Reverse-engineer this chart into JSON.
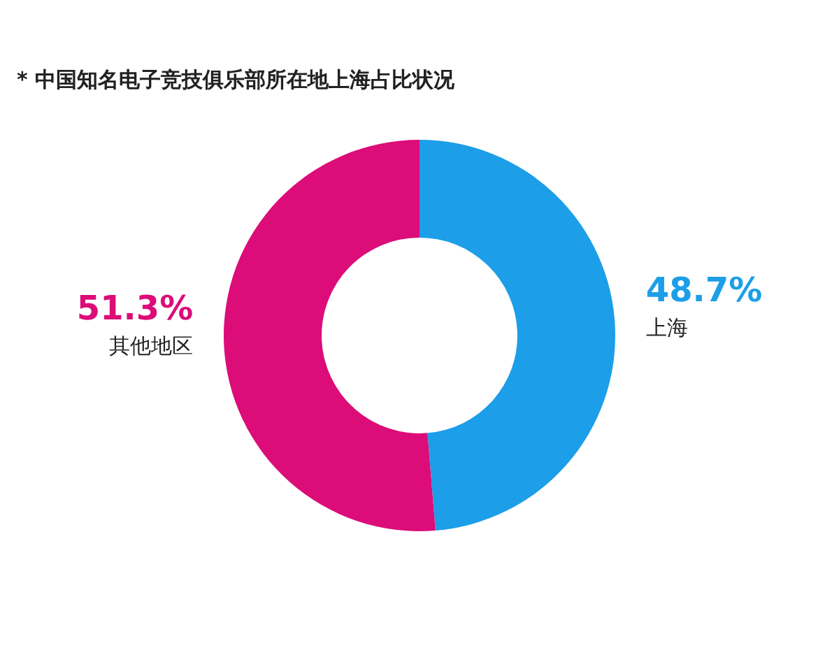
{
  "chart_data": {
    "type": "donut",
    "title": "* 中国知名电子竞技俱乐部所在地上海占比状况",
    "categories": [
      "上海",
      "其他地区"
    ],
    "values": [
      48.7,
      51.3
    ],
    "value_labels": [
      "48.7%",
      "51.3%"
    ],
    "colors": [
      "#1d9ee8",
      "#dc0c78"
    ],
    "legend": false
  }
}
